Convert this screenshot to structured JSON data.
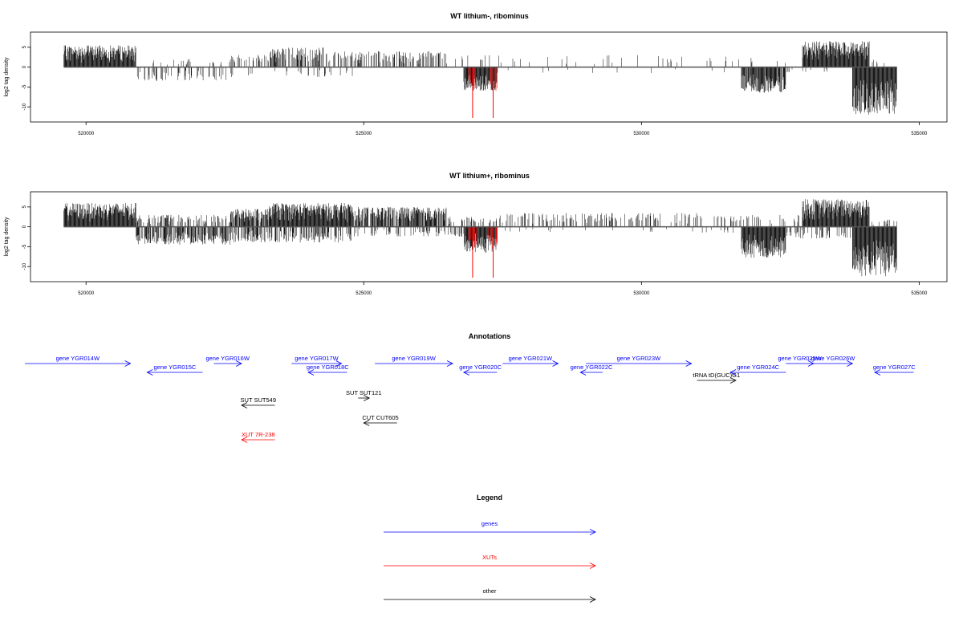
{
  "chart_data": {
    "type": "bar",
    "x_range": [
      519000,
      535500
    ],
    "y_range": [
      -13,
      8
    ],
    "yticks": [
      5,
      0,
      -5,
      -10
    ],
    "xticks": [
      520000,
      525000,
      530000,
      535000
    ],
    "xtick_labels": [
      "520000",
      "525000",
      "530000",
      "535000"
    ],
    "ylabel": "log2 tag density",
    "colors": {
      "bar": "#000000",
      "highlight": "#ff0000",
      "gene": "#0000ff",
      "xut": "#ff0000",
      "other": "#000000"
    },
    "panels": [
      {
        "title": "WT lithium-, ribominus",
        "pos_regions": [
          {
            "start": 519600,
            "end": 520900,
            "max": 5.5,
            "density": 1
          },
          {
            "start": 521200,
            "end": 522600,
            "max": 2.0,
            "density": 0.12
          },
          {
            "start": 522600,
            "end": 523300,
            "max": 3.5,
            "density": 0.3
          },
          {
            "start": 523300,
            "end": 524300,
            "max": 5.0,
            "density": 0.55
          },
          {
            "start": 524300,
            "end": 526500,
            "max": 4.0,
            "density": 0.4
          },
          {
            "start": 526500,
            "end": 531600,
            "max": 3.0,
            "density": 0.07
          },
          {
            "start": 531600,
            "end": 532900,
            "max": 2.5,
            "density": 0.05
          },
          {
            "start": 532900,
            "end": 534100,
            "max": 6.5,
            "density": 1
          },
          {
            "start": 534100,
            "end": 534600,
            "max": 2.0,
            "density": 0.1
          }
        ],
        "neg_regions": [
          {
            "start": 520900,
            "end": 522600,
            "min": -3.5,
            "density": 0.25
          },
          {
            "start": 522600,
            "end": 524800,
            "min": -2.5,
            "density": 0.08
          },
          {
            "start": 526800,
            "end": 527400,
            "min": -6.0,
            "density": 1
          },
          {
            "start": 527400,
            "end": 531800,
            "min": -1.5,
            "density": 0.02
          },
          {
            "start": 531800,
            "end": 532600,
            "min": -6.5,
            "density": 0.9
          },
          {
            "start": 532600,
            "end": 533800,
            "min": -1.5,
            "density": 0.05
          },
          {
            "start": 533800,
            "end": 534600,
            "min": -12.0,
            "density": 1
          }
        ],
        "highlights": [
          {
            "x": 526960,
            "min": -12.8
          },
          {
            "x": 527330,
            "min": -12.8
          }
        ]
      },
      {
        "title": "WT lithium+, ribominus",
        "pos_regions": [
          {
            "start": 519600,
            "end": 520900,
            "max": 6.0,
            "density": 1
          },
          {
            "start": 520900,
            "end": 522600,
            "max": 3.0,
            "density": 0.4
          },
          {
            "start": 522600,
            "end": 523300,
            "max": 4.5,
            "density": 0.8
          },
          {
            "start": 523300,
            "end": 524800,
            "max": 6.0,
            "density": 1
          },
          {
            "start": 524800,
            "end": 526500,
            "max": 5.0,
            "density": 0.8
          },
          {
            "start": 526500,
            "end": 527400,
            "max": 2.5,
            "density": 0.3
          },
          {
            "start": 527400,
            "end": 531000,
            "max": 3.5,
            "density": 0.25
          },
          {
            "start": 531000,
            "end": 532900,
            "max": 3.0,
            "density": 0.15
          },
          {
            "start": 532900,
            "end": 534100,
            "max": 7.0,
            "density": 1
          },
          {
            "start": 534100,
            "end": 534600,
            "max": 2.0,
            "density": 0.2
          }
        ],
        "neg_regions": [
          {
            "start": 520900,
            "end": 522600,
            "min": -4.5,
            "density": 0.7
          },
          {
            "start": 522600,
            "end": 524800,
            "min": -4.0,
            "density": 0.45
          },
          {
            "start": 524800,
            "end": 526800,
            "min": -2.5,
            "density": 0.25
          },
          {
            "start": 526800,
            "end": 527400,
            "min": -6.5,
            "density": 1
          },
          {
            "start": 527400,
            "end": 531800,
            "min": -1.5,
            "density": 0.04
          },
          {
            "start": 531800,
            "end": 532600,
            "min": -8.0,
            "density": 1
          },
          {
            "start": 532600,
            "end": 533800,
            "min": -3.0,
            "density": 0.3
          },
          {
            "start": 533800,
            "end": 534600,
            "min": -12.5,
            "density": 1
          }
        ],
        "highlights": [
          {
            "x": 526960,
            "min": -12.8
          },
          {
            "x": 527330,
            "min": -12.8
          }
        ]
      }
    ],
    "annotations": {
      "title": "Annotations",
      "items": [
        {
          "label": "gene YGR014W",
          "start": 518900,
          "end": 520800,
          "strand": "+",
          "type": "gene",
          "row": 0
        },
        {
          "label": "gene YGR015C",
          "start": 521100,
          "end": 522100,
          "strand": "-",
          "type": "gene",
          "row": 1
        },
        {
          "label": "gene YGR016W",
          "start": 522300,
          "end": 522800,
          "strand": "+",
          "type": "gene",
          "row": 0
        },
        {
          "label": "gene YGR017W",
          "start": 523700,
          "end": 524600,
          "strand": "+",
          "type": "gene",
          "row": 0
        },
        {
          "label": "gene YGR018C",
          "start": 524000,
          "end": 524700,
          "strand": "-",
          "type": "gene",
          "row": 1
        },
        {
          "label": "gene YGR019W",
          "start": 525200,
          "end": 526600,
          "strand": "+",
          "type": "gene",
          "row": 0
        },
        {
          "label": "gene YGR020C",
          "start": 526800,
          "end": 527400,
          "strand": "-",
          "type": "gene",
          "row": 1
        },
        {
          "label": "gene YGR021W",
          "start": 527500,
          "end": 528500,
          "strand": "+",
          "type": "gene",
          "row": 0
        },
        {
          "label": "gene YGR022C",
          "start": 528900,
          "end": 529300,
          "strand": "-",
          "type": "gene",
          "row": 1
        },
        {
          "label": "gene YGR023W",
          "start": 529000,
          "end": 530900,
          "strand": "+",
          "type": "gene",
          "row": 0
        },
        {
          "label": "tRNA tD(GUC)G1",
          "start": 531000,
          "end": 531700,
          "strand": "+",
          "type": "other",
          "row": 2
        },
        {
          "label": "gene YGR024C",
          "start": 531600,
          "end": 532600,
          "strand": "-",
          "type": "gene",
          "row": 1
        },
        {
          "label": "gene YGR025W",
          "start": 532600,
          "end": 533100,
          "strand": "+",
          "type": "gene",
          "row": 0
        },
        {
          "label": "gene YGR026W",
          "start": 533100,
          "end": 533800,
          "strand": "+",
          "type": "gene",
          "row": 0
        },
        {
          "label": "gene YGR027C",
          "start": 534200,
          "end": 534900,
          "strand": "-",
          "type": "gene",
          "row": 1
        },
        {
          "label": "SUT SUT549",
          "start": 522800,
          "end": 523400,
          "strand": "-",
          "type": "other",
          "row": 3
        },
        {
          "label": "SUT SUT121",
          "start": 524900,
          "end": 525100,
          "strand": "+",
          "type": "other",
          "row": 4
        },
        {
          "label": "CUT CUT605",
          "start": 525000,
          "end": 525600,
          "strand": "-",
          "type": "other",
          "row": 5
        },
        {
          "label": "XUT 7R-238",
          "start": 522800,
          "end": 523400,
          "strand": "-",
          "type": "xut",
          "row": 6
        }
      ]
    },
    "legend": {
      "title": "Legend",
      "items": [
        {
          "label": "genes",
          "type": "gene"
        },
        {
          "label": "XUTs",
          "type": "xut"
        },
        {
          "label": "other",
          "type": "other"
        }
      ]
    }
  }
}
